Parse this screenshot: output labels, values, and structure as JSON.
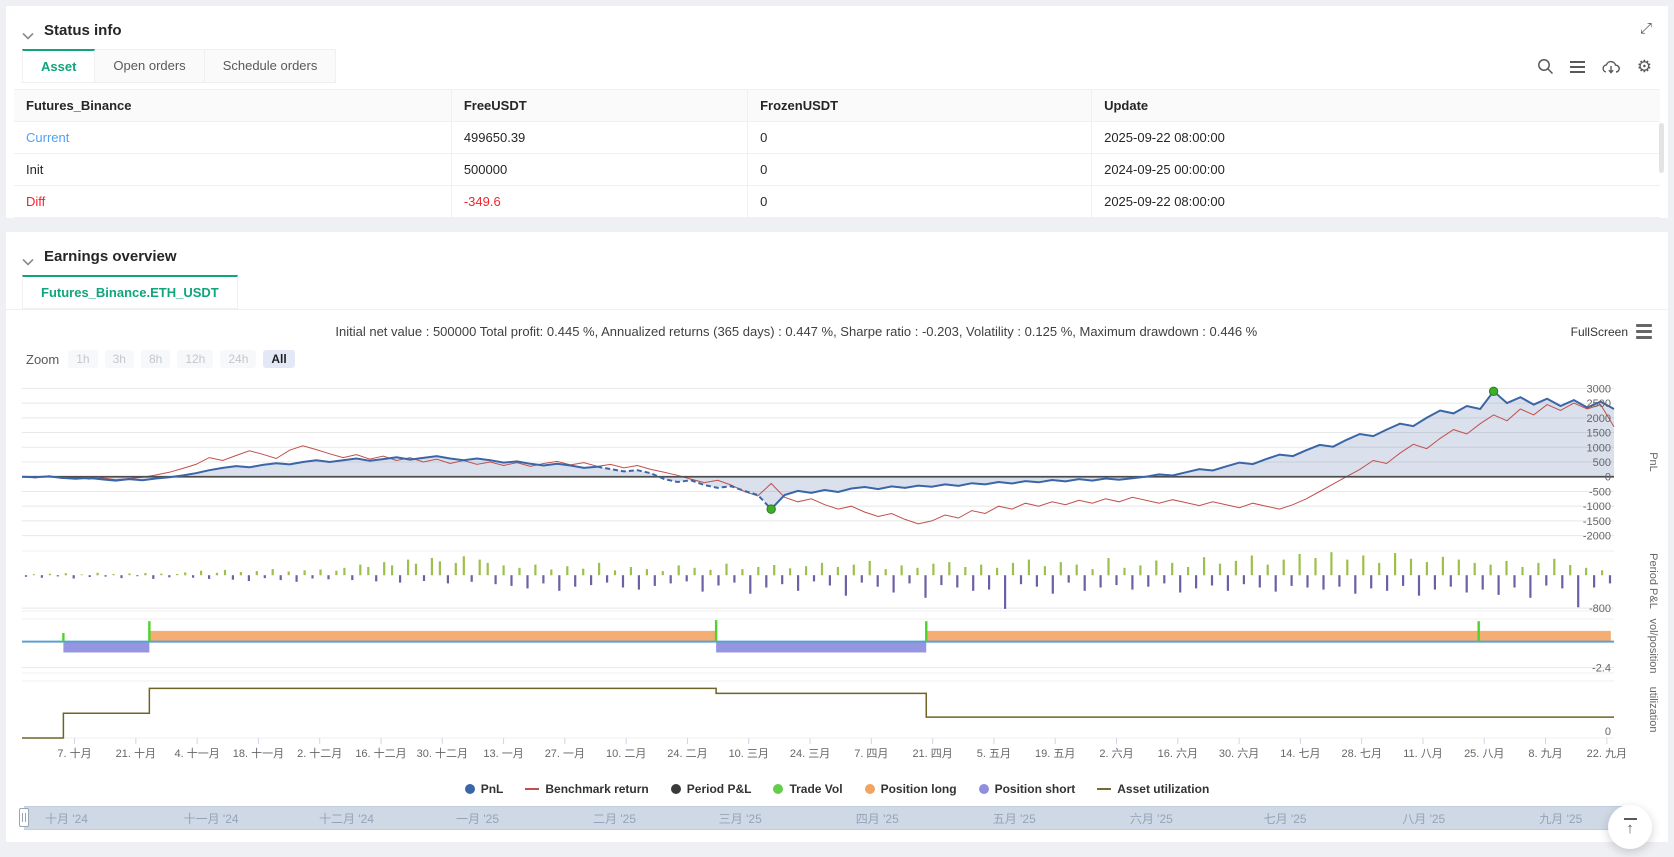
{
  "colors": {
    "accent_green": "#10a57b",
    "link_blue": "#4da2f8",
    "danger_red": "#f5222d"
  },
  "status_info": {
    "title": "Status info",
    "tabs": [
      {
        "label": "Asset",
        "active": true
      },
      {
        "label": "Open orders",
        "active": false
      },
      {
        "label": "Schedule orders",
        "active": false
      }
    ],
    "table": {
      "headers": [
        "Futures_Binance",
        "FreeUSDT",
        "FrozenUSDT",
        "Update"
      ],
      "rows": [
        {
          "label": "Current",
          "free": "499650.39",
          "frozen": "0",
          "update": "2025-09-22 08:00:00"
        },
        {
          "label": "Init",
          "free": "500000",
          "frozen": "0",
          "update": "2024-09-25 00:00:00"
        },
        {
          "label": "Diff",
          "free": "-349.6",
          "frozen": "0",
          "update": "2025-09-22 08:00:00"
        }
      ]
    }
  },
  "earnings": {
    "title": "Earnings overview",
    "tab": "Futures_Binance.ETH_USDT",
    "summary": "Initial net value : 500000 Total profit: 0.445 %, Annualized returns (365 days) : 0.447 %, Sharpe ratio : -0.203, Volatility : 0.125 %, Maximum drawdown : 0.446 %",
    "fullscreen_label": "FullScreen",
    "zoom": {
      "label": "Zoom",
      "buttons": [
        "1h",
        "3h",
        "8h",
        "12h",
        "24h",
        "All"
      ],
      "active": "All"
    }
  },
  "chart_data": {
    "type": "line",
    "panels": [
      {
        "id": "pnl",
        "axis_title": "PnL",
        "ylim": [
          -2250,
          3250
        ],
        "yticks": [
          3000,
          2500,
          2000,
          1500,
          1000,
          500,
          0,
          -500,
          -1000,
          -1500,
          -2000
        ]
      },
      {
        "id": "period",
        "axis_title": "Period P&L",
        "ylim": [
          -870,
          590
        ],
        "yticks": [
          -800
        ]
      },
      {
        "id": "volpos",
        "axis_title": "vol/position",
        "ylim": [
          -2.9,
          2.1
        ],
        "yticks": [
          -2.4
        ]
      },
      {
        "id": "util",
        "axis_title": "utilization",
        "ylim": [
          0,
          1.15
        ],
        "yticks": [
          0
        ]
      }
    ],
    "x_tick_labels": [
      "7. 十月",
      "21. 十月",
      "4. 十一月",
      "18. 十一月",
      "2. 十二月",
      "16. 十二月",
      "30. 十二月",
      "13. 一月",
      "27. 一月",
      "10. 二月",
      "24. 二月",
      "10. 三月",
      "24. 三月",
      "7. 四月",
      "21. 四月",
      "5. 五月",
      "19. 五月",
      "2. 六月",
      "16. 六月",
      "30. 六月",
      "14. 七月",
      "28. 七月",
      "11. 八月",
      "25. 八月",
      "8. 九月",
      "22. 九月"
    ],
    "navigator_labels": [
      "十月 '24",
      "十一月 '24",
      "十二月 '24",
      "一月 '25",
      "二月 '25",
      "三月 '25",
      "四月 '25",
      "五月 '25",
      "六月 '25",
      "七月 '25",
      "八月 '25",
      "九月 '25"
    ],
    "series": {
      "pnl": {
        "name": "PnL",
        "color": "#3a66a7",
        "area_opacity": 0.22,
        "dash_from": 43,
        "dash_to": 56,
        "values": [
          0,
          -20,
          10,
          -40,
          -70,
          -40,
          -90,
          -130,
          -80,
          -120,
          -60,
          -20,
          40,
          120,
          220,
          300,
          360,
          320,
          400,
          460,
          420,
          500,
          560,
          500,
          560,
          620,
          540,
          600,
          660,
          580,
          640,
          700,
          620,
          560,
          620,
          560,
          480,
          520,
          440,
          380,
          440,
          380,
          300,
          340,
          260,
          180,
          220,
          120,
          -80,
          -180,
          -120,
          -280,
          -380,
          -320,
          -480,
          -620,
          -1100,
          -620,
          -480,
          -550,
          -450,
          -520,
          -400,
          -350,
          -420,
          -330,
          -380,
          -300,
          -340,
          -260,
          -310,
          -220,
          -260,
          -180,
          -230,
          -150,
          -190,
          -110,
          -160,
          -80,
          -130,
          -60,
          -100,
          -50,
          0,
          80,
          40,
          150,
          260,
          210,
          350,
          480,
          430,
          600,
          750,
          700,
          900,
          1080,
          1020,
          1250,
          1450,
          1380,
          1600,
          1800,
          1720,
          2000,
          2250,
          2150,
          2400,
          2300,
          2900,
          2500,
          2700,
          2450,
          2650,
          2400,
          2600,
          2350,
          2550,
          2300
        ]
      },
      "benchmark": {
        "name": "Benchmark return",
        "color": "#c0504d",
        "values": [
          0,
          -40,
          30,
          -60,
          -30,
          -80,
          -40,
          -100,
          -60,
          -20,
          60,
          150,
          280,
          420,
          650,
          550,
          720,
          880,
          760,
          620,
          900,
          1050,
          920,
          780,
          650,
          750,
          600,
          700,
          550,
          650,
          500,
          600,
          450,
          550,
          420,
          500,
          380,
          480,
          350,
          450,
          520,
          400,
          480,
          350,
          420,
          300,
          380,
          250,
          150,
          50,
          -80,
          -200,
          -120,
          -280,
          -500,
          -650,
          -230,
          -700,
          -850,
          -750,
          -950,
          -1100,
          -1000,
          -1200,
          -1350,
          -1250,
          -1450,
          -1600,
          -1500,
          -1300,
          -1400,
          -1150,
          -1250,
          -1000,
          -1100,
          -900,
          -1000,
          -850,
          -950,
          -800,
          -900,
          -750,
          -850,
          -700,
          -800,
          -900,
          -780,
          -880,
          -980,
          -850,
          -950,
          -1050,
          -900,
          -1000,
          -1100,
          -950,
          -750,
          -500,
          -250,
          0,
          250,
          550,
          450,
          800,
          1100,
          950,
          1300,
          1600,
          1450,
          1800,
          2100,
          1900,
          2300,
          2100,
          2450,
          2250,
          2500,
          2300,
          2450,
          1700
        ]
      },
      "period_pnl": {
        "name": "Period P&L",
        "color_pos": "#9dc04b",
        "color_neg": "#6f5fa5",
        "legend_color": "#3a3a3a",
        "values": [
          -40,
          25,
          -60,
          35,
          -30,
          50,
          -80,
          20,
          -45,
          60,
          -35,
          30,
          -70,
          45,
          -25,
          55,
          -90,
          40,
          -50,
          30,
          70,
          -60,
          110,
          -90,
          60,
          130,
          -110,
          80,
          -140,
          100,
          -70,
          150,
          -120,
          90,
          -160,
          120,
          -80,
          140,
          -100,
          110,
          180,
          -120,
          260,
          200,
          -150,
          320,
          240,
          -180,
          380,
          280,
          -140,
          420,
          340,
          -200,
          300,
          460,
          -160,
          380,
          300,
          -220,
          240,
          -260,
          180,
          -320,
          260,
          -200,
          140,
          -380,
          220,
          -280,
          160,
          -240,
          300,
          -180,
          120,
          -300,
          200,
          -350,
          150,
          -260,
          100,
          -200,
          240,
          -150,
          180,
          -400,
          130,
          -250,
          280,
          -180,
          150,
          -450,
          200,
          -300,
          250,
          -220,
          170,
          -380,
          220,
          -150,
          300,
          -250,
          200,
          -500,
          260,
          -180,
          350,
          -280,
          150,
          -420,
          240,
          -200,
          180,
          -550,
          280,
          -240,
          320,
          -300,
          200,
          -380,
          260,
          -350,
          180,
          -820,
          300,
          -220,
          380,
          -280,
          220,
          -450,
          320,
          -180,
          260,
          -380,
          150,
          -300,
          420,
          -240,
          180,
          -350,
          240,
          -280,
          360,
          -200,
          300,
          -420,
          200,
          -320,
          440,
          -250,
          280,
          -380,
          350,
          -220,
          480,
          -300,
          260,
          -400,
          380,
          -260,
          520,
          -300,
          420,
          -350,
          560,
          -280,
          380,
          -450,
          480,
          -320,
          300,
          -380,
          540,
          -260,
          400,
          -500,
          320,
          -350,
          450,
          -280,
          380,
          -420,
          300,
          -350,
          260,
          -480,
          350,
          -300,
          200,
          -550,
          300,
          -250,
          400,
          -320,
          250,
          -780,
          180,
          -300,
          120,
          -200
        ]
      },
      "trade_vol": {
        "name": "Trade Vol",
        "color": "#4ed32c",
        "spikes": [
          {
            "x": 0.026,
            "h": 0.8
          },
          {
            "x": 0.08,
            "h": 1.9
          },
          {
            "x": 0.436,
            "h": 2.0
          },
          {
            "x": 0.568,
            "h": 1.9
          },
          {
            "x": 0.915,
            "h": 1.9
          }
        ]
      },
      "position_long": {
        "name": "Position long",
        "color": "#f4ad72",
        "value": 1,
        "segments": [
          {
            "x0": 0.08,
            "x1": 0.436
          },
          {
            "x0": 0.568,
            "x1": 0.998
          }
        ]
      },
      "position_short": {
        "name": "Position short",
        "color": "#9595e2",
        "value": -1,
        "segments": [
          {
            "x0": 0.026,
            "x1": 0.08
          },
          {
            "x0": 0.436,
            "x1": 0.568
          }
        ]
      },
      "asset_utilization": {
        "name": "Asset utilization",
        "color": "#6d6426",
        "steps": [
          {
            "x": 0,
            "v": 0
          },
          {
            "x": 0.026,
            "v": 0.5
          },
          {
            "x": 0.08,
            "v": 1.0
          },
          {
            "x": 0.436,
            "v": 0.9
          },
          {
            "x": 0.568,
            "v": 0.42
          },
          {
            "x": 0.998,
            "v": 0.42
          }
        ]
      }
    },
    "markers": {
      "color": "#3fae2a",
      "points": [
        {
          "series": "pnl",
          "index": 56
        },
        {
          "series": "pnl",
          "index": 110
        }
      ]
    },
    "legend": [
      {
        "label": "PnL",
        "type": "circle",
        "color": "#3a66a7"
      },
      {
        "label": "Benchmark return",
        "type": "line",
        "color": "#c0504d"
      },
      {
        "label": "Period P&L",
        "type": "circle",
        "color": "#3a3a3a"
      },
      {
        "label": "Trade Vol",
        "type": "circle",
        "color": "#66cc4d"
      },
      {
        "label": "Position long",
        "type": "circle",
        "color": "#f2a45f"
      },
      {
        "label": "Position short",
        "type": "circle",
        "color": "#8f8fe0"
      },
      {
        "label": "Asset utilization",
        "type": "line",
        "color": "#756a33"
      }
    ]
  }
}
